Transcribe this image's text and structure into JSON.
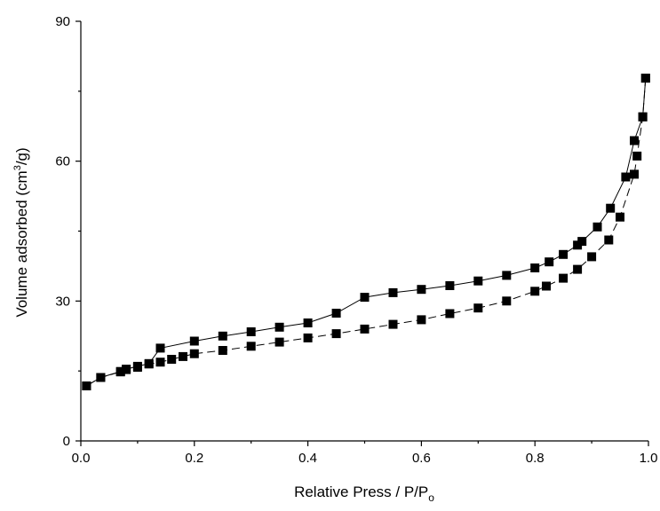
{
  "chart_data": {
    "type": "scatter",
    "xlabel": "Relative Press / P/P",
    "xlabel_sub": "o",
    "ylabel_pre": "Volume adsorbed (cm",
    "ylabel_sup": "3",
    "ylabel_post": "/g)",
    "xlim": [
      0,
      1.0
    ],
    "ylim": [
      0,
      90
    ],
    "xticks": [
      0.0,
      0.2,
      0.4,
      0.6,
      0.8,
      1.0
    ],
    "xtick_labels": [
      "0.0",
      "0.2",
      "0.4",
      "0.6",
      "0.8",
      "1.0"
    ],
    "yticks": [
      0,
      30,
      60,
      90
    ],
    "ytick_labels": [
      "0",
      "30",
      "60",
      "90"
    ],
    "grid": false,
    "marker": "square",
    "color": "#000000",
    "series": [
      {
        "line_style": "solid",
        "x": [
          0.01,
          0.035,
          0.07,
          0.08,
          0.1,
          0.12,
          0.14,
          0.2,
          0.25,
          0.3,
          0.35,
          0.4,
          0.45,
          0.5,
          0.55,
          0.6,
          0.65,
          0.7,
          0.75,
          0.8,
          0.825,
          0.85,
          0.875,
          0.883,
          0.91,
          0.933,
          0.96,
          0.975,
          0.99,
          0.995
        ],
        "y": [
          11.8,
          13.6,
          14.9,
          15.4,
          16.0,
          16.6,
          19.9,
          21.4,
          22.5,
          23.4,
          24.4,
          25.3,
          27.4,
          30.8,
          31.8,
          32.5,
          33.3,
          34.3,
          35.5,
          37.1,
          38.4,
          40.0,
          42.0,
          42.8,
          45.9,
          49.9,
          56.6,
          64.4,
          69.5,
          77.8
        ]
      },
      {
        "line_style": "dashed",
        "x": [
          0.995,
          0.99,
          0.98,
          0.975,
          0.95,
          0.93,
          0.9,
          0.875,
          0.85,
          0.82,
          0.8,
          0.75,
          0.7,
          0.65,
          0.6,
          0.55,
          0.5,
          0.45,
          0.4,
          0.35,
          0.3,
          0.25,
          0.2,
          0.18,
          0.16,
          0.14,
          0.12,
          0.1,
          0.08,
          0.07,
          0.035,
          0.01
        ],
        "y": [
          77.8,
          69.5,
          61.1,
          57.2,
          48.0,
          43.1,
          39.5,
          36.8,
          34.9,
          33.2,
          32.1,
          30.0,
          28.5,
          27.3,
          26.0,
          25.0,
          24.0,
          23.0,
          22.1,
          21.2,
          20.3,
          19.4,
          18.7,
          18.1,
          17.5,
          16.9,
          16.5,
          15.8,
          15.3,
          14.8,
          13.6,
          11.8
        ]
      }
    ]
  }
}
